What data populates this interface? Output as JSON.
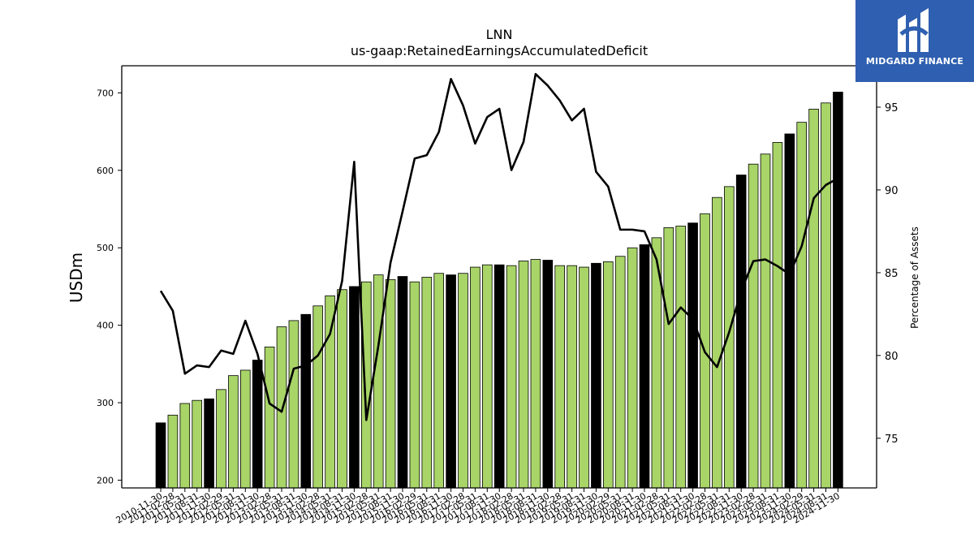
{
  "chart_data": {
    "type": "bar",
    "title": "LNN",
    "subtitle": "us-gaap:RetainedEarningsAccumulatedDeficit",
    "ylabel": "USDm",
    "y2label": "Percentage of Assets",
    "ylim": [
      190,
      735
    ],
    "y2lim": [
      72,
      97.5
    ],
    "yticks": [
      200,
      300,
      400,
      500,
      600,
      700
    ],
    "y2ticks": [
      75,
      80,
      85,
      90,
      95
    ],
    "bar_colors": {
      "fiscal_year_end": "#000000",
      "quarter": "#a8d468"
    },
    "line_color": "#000000",
    "categories": [
      "2010-11-30",
      "2011-02-28",
      "2011-05-31",
      "2011-08-31",
      "2011-11-30",
      "2012-02-29",
      "2012-05-31",
      "2012-08-31",
      "2012-11-30",
      "2013-02-28",
      "2013-05-31",
      "2013-08-31",
      "2013-11-30",
      "2014-02-28",
      "2014-05-31",
      "2014-08-31",
      "2014-11-30",
      "2015-02-28",
      "2015-05-31",
      "2015-08-31",
      "2015-11-30",
      "2016-02-29",
      "2016-05-31",
      "2016-08-31",
      "2016-11-30",
      "2017-02-28",
      "2017-05-31",
      "2017-08-31",
      "2017-11-30",
      "2018-02-28",
      "2018-05-31",
      "2018-08-31",
      "2018-11-30",
      "2019-02-28",
      "2019-05-31",
      "2019-08-31",
      "2019-11-30",
      "2020-02-29",
      "2020-05-31",
      "2020-08-31",
      "2020-11-30",
      "2021-02-28",
      "2021-05-31",
      "2021-08-31",
      "2021-11-30",
      "2022-02-28",
      "2022-05-31",
      "2022-08-31",
      "2022-11-30",
      "2023-02-28",
      "2023-05-31",
      "2023-08-31",
      "2023-11-30",
      "2024-02-29",
      "2024-05-31",
      "2024-08-31",
      "2024-11-30"
    ],
    "values": [
      274,
      284,
      299,
      303,
      305,
      317,
      335,
      342,
      355,
      372,
      398,
      406,
      414,
      425,
      438,
      446,
      450,
      456,
      465,
      459,
      463,
      456,
      462,
      467,
      465,
      467,
      475,
      478,
      478,
      477,
      483,
      485,
      484,
      477,
      477,
      475,
      480,
      482,
      489,
      500,
      504,
      513,
      526,
      528,
      532,
      544,
      565,
      579,
      594,
      608,
      621,
      636,
      647,
      662,
      679,
      687,
      701
    ],
    "fiscal_year_end": [
      true,
      false,
      false,
      false,
      true,
      false,
      false,
      false,
      true,
      false,
      false,
      false,
      true,
      false,
      false,
      false,
      true,
      false,
      false,
      false,
      true,
      false,
      false,
      false,
      true,
      false,
      false,
      false,
      true,
      false,
      false,
      false,
      true,
      false,
      false,
      false,
      true,
      false,
      false,
      false,
      true,
      false,
      false,
      false,
      true,
      false,
      false,
      false,
      true,
      false,
      false,
      false,
      true,
      false,
      false,
      false,
      true
    ],
    "line_series": {
      "name": "Percentage of Assets",
      "values": [
        83.9,
        82.7,
        78.9,
        79.4,
        79.3,
        80.3,
        80.1,
        82.1,
        80.1,
        77.1,
        76.6,
        79.2,
        79.4,
        80.0,
        81.3,
        84.5,
        91.7,
        76.1,
        80.6,
        85.6,
        88.7,
        91.9,
        92.1,
        93.5,
        96.7,
        95.1,
        92.8,
        94.4,
        94.9,
        91.2,
        92.9,
        97.0,
        96.3,
        95.4,
        94.2,
        94.9,
        91.1,
        90.2,
        87.6,
        87.6,
        87.5,
        85.8,
        81.9,
        82.9,
        82.2,
        80.2,
        79.3,
        81.4,
        83.9,
        85.7,
        85.8,
        85.4,
        84.9,
        86.6,
        89.5,
        90.3,
        90.7
      ]
    }
  },
  "logo": {
    "text": "MIDGARD FINANCE"
  }
}
